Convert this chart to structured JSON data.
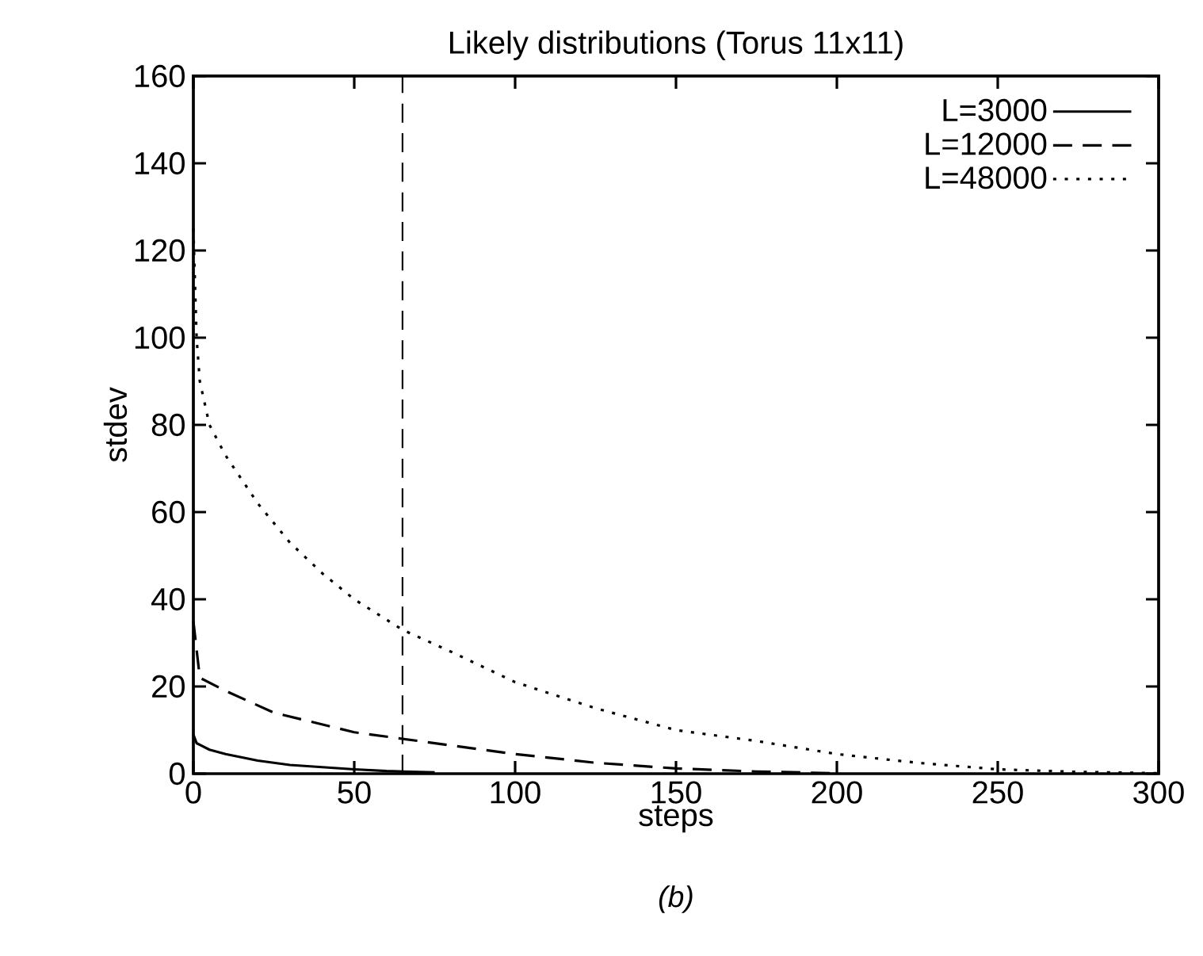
{
  "chart_data": {
    "type": "line",
    "title": "Likely distributions (Torus 11x11)",
    "xlabel": "steps",
    "ylabel": "stdev",
    "annotations": [
      "(b)"
    ],
    "xlim": [
      0,
      300
    ],
    "ylim": [
      0,
      160
    ],
    "xticks": [
      0,
      50,
      100,
      150,
      200,
      250,
      300
    ],
    "yticks": [
      0,
      20,
      40,
      60,
      80,
      100,
      120,
      140,
      160
    ],
    "legend": "top right",
    "grid": false,
    "series": [
      {
        "name": "L=3000",
        "color": "#000000",
        "line_style": "solid",
        "x": [
          0,
          1,
          5,
          10,
          20,
          30,
          40,
          50,
          60,
          75
        ],
        "values": [
          9,
          7,
          5.5,
          4.5,
          3,
          2,
          1.5,
          1,
          0.6,
          0.3
        ]
      },
      {
        "name": "L=12000",
        "color": "#000000",
        "line_style": "dashed",
        "x": [
          0,
          2,
          10,
          25,
          50,
          65,
          100,
          125,
          150,
          175,
          200
        ],
        "values": [
          35,
          22,
          19,
          14,
          9.5,
          8,
          4.5,
          2.5,
          1.2,
          0.5,
          0.1
        ]
      },
      {
        "name": "L=48000",
        "color": "#000000",
        "line_style": "dotted",
        "x": [
          0,
          1,
          2,
          5,
          10,
          20,
          30,
          40,
          50,
          65,
          80,
          100,
          125,
          150,
          175,
          200,
          225,
          250,
          275,
          300
        ],
        "values": [
          125,
          100,
          90,
          80,
          73,
          62,
          53,
          46,
          40,
          33,
          28,
          21,
          15,
          10,
          7.5,
          4.5,
          2.5,
          1,
          0.4,
          0.1
        ]
      }
    ],
    "ref_lines": [
      {
        "axis": "x",
        "value": 65,
        "line_style": "dashed",
        "color": "#000000"
      }
    ]
  }
}
